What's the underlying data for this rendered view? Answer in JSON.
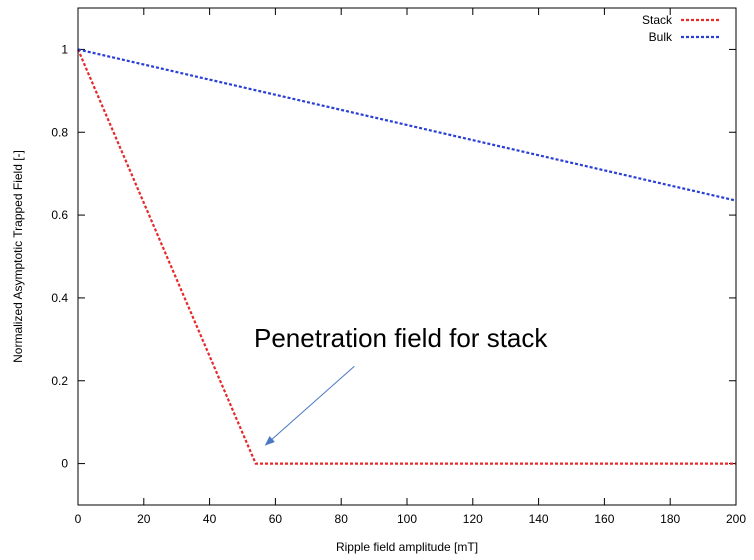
{
  "chart_data": {
    "type": "line",
    "xlabel": "Ripple field amplitude [mT]",
    "ylabel": "Normalized Asymptotic Trapped Field [-]",
    "xlim": [
      0,
      200
    ],
    "ylim": [
      -0.1,
      1.1
    ],
    "xticks": [
      0,
      20,
      40,
      60,
      80,
      100,
      120,
      140,
      160,
      180,
      200
    ],
    "yticks": [
      0,
      0.2,
      0.4,
      0.6,
      0.8,
      1
    ],
    "ytick_labels": [
      "0",
      "0.2",
      "0.4",
      "0.6",
      "0.8",
      "1"
    ],
    "grid": false,
    "legend_position": "top-right",
    "series": [
      {
        "name": "Stack",
        "color": "#e8292a",
        "dash": "dotted",
        "x": [
          0,
          54,
          200
        ],
        "y": [
          1,
          0,
          0
        ]
      },
      {
        "name": "Bulk",
        "color": "#2a3fd6",
        "dash": "dotted",
        "x": [
          0,
          200
        ],
        "y": [
          1,
          0.635
        ]
      }
    ],
    "annotation": {
      "text": "Penetration field for stack",
      "arrow_color": "#4a78c4",
      "arrow_from": [
        84,
        0.235
      ],
      "arrow_to": [
        57,
        0.045
      ]
    }
  }
}
